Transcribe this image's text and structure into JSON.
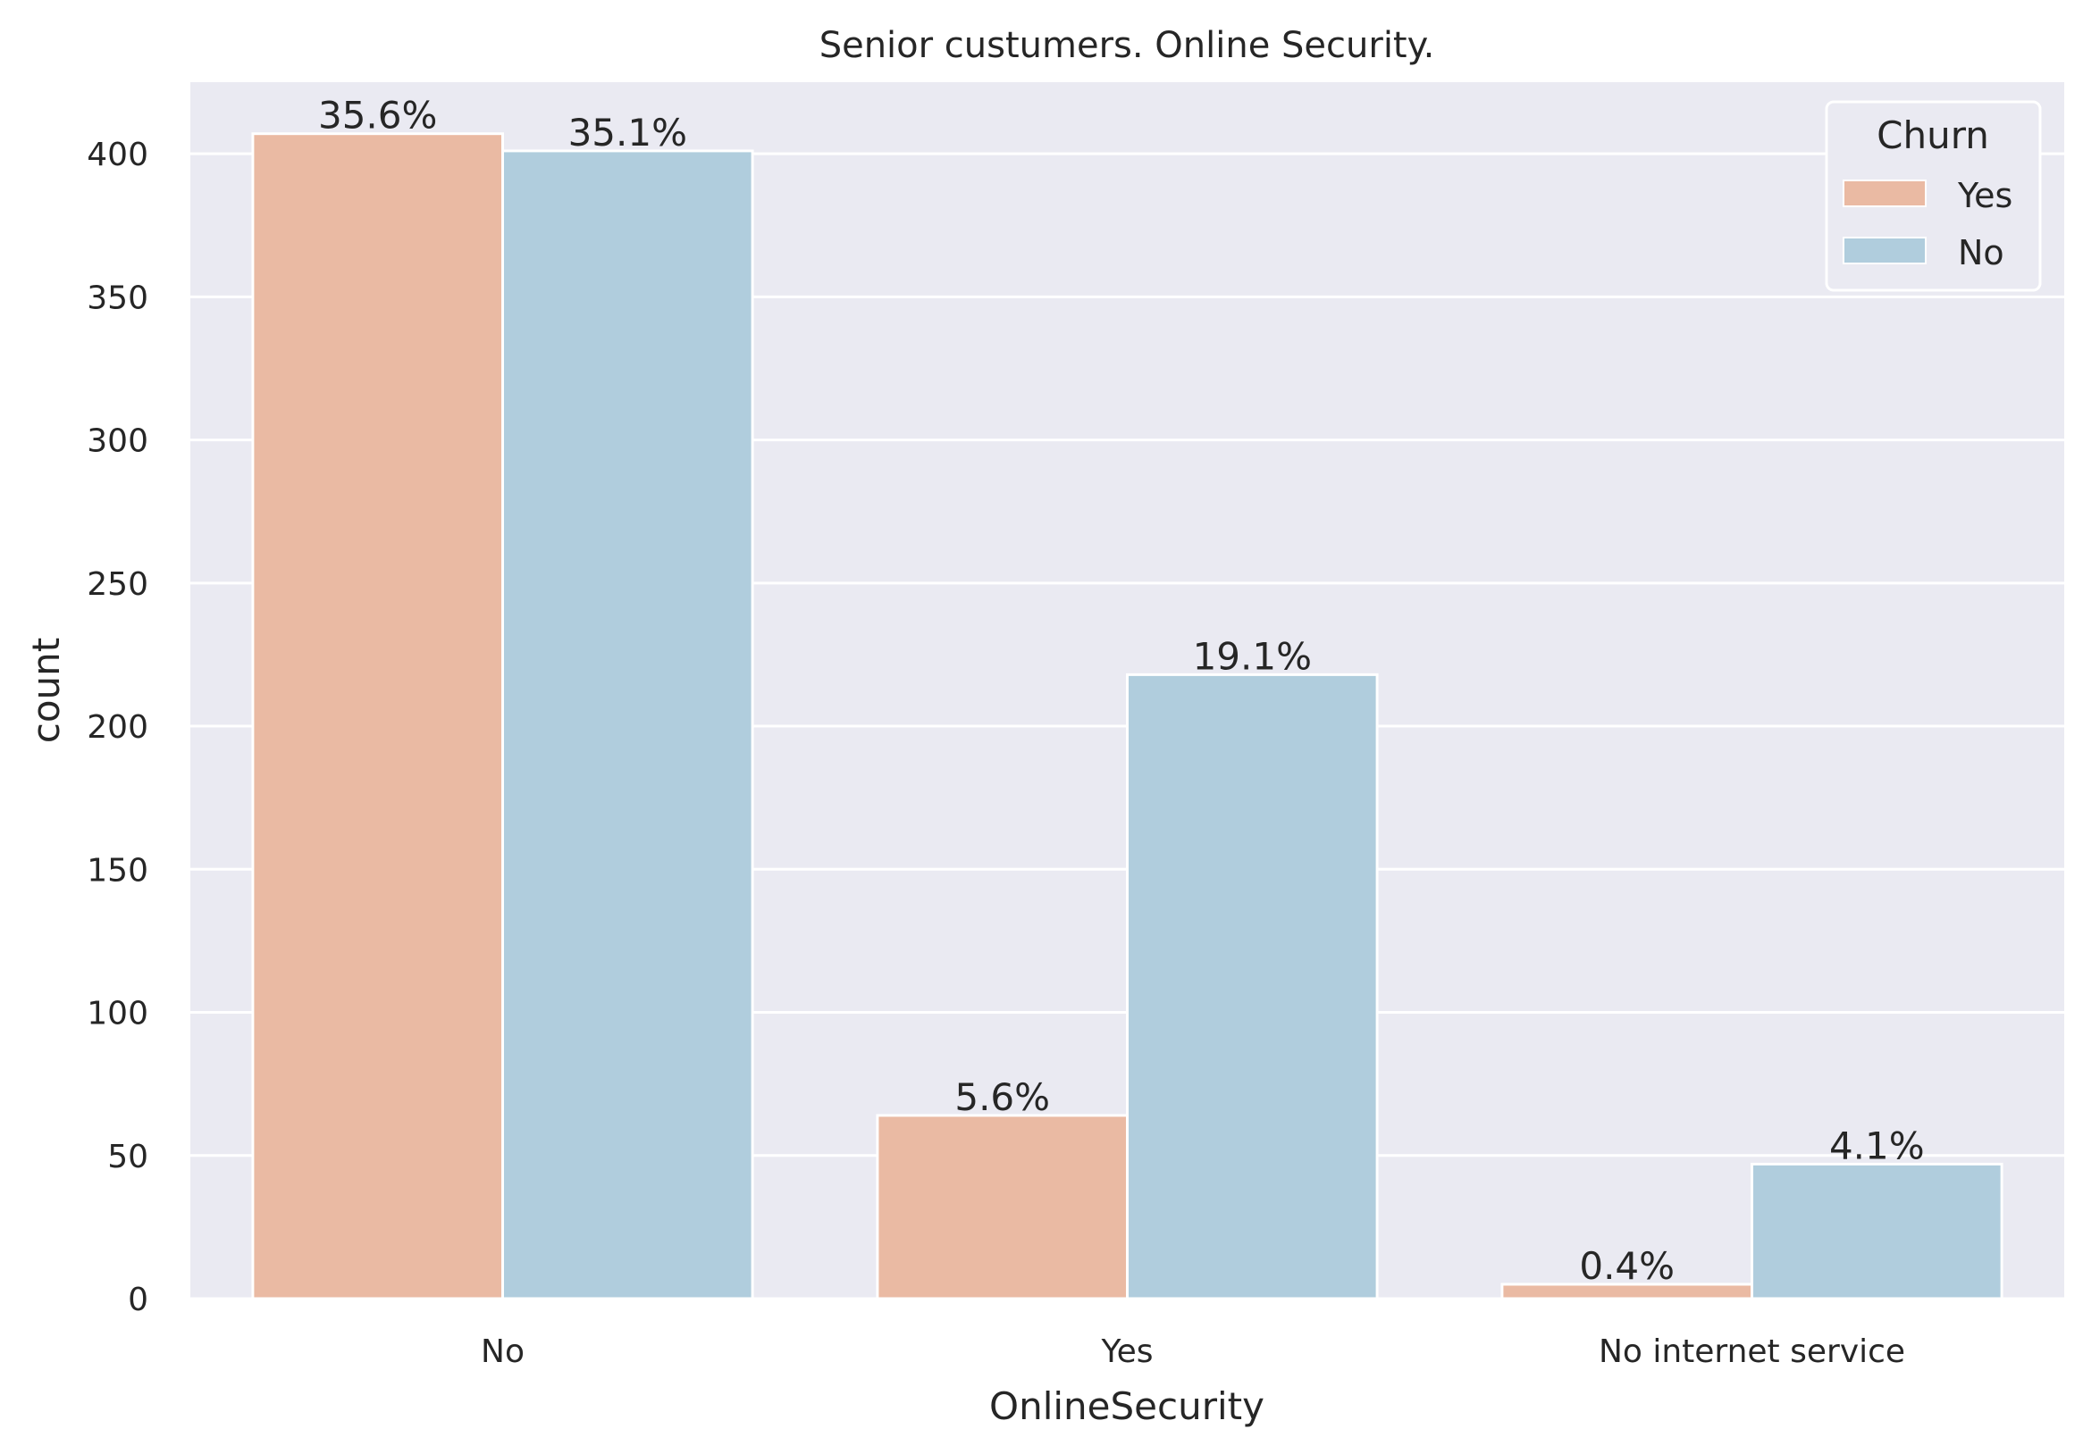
{
  "chart_data": {
    "type": "bar",
    "title": "Senior custumers. Online Security.",
    "xlabel": "OnlineSecurity",
    "ylabel": "count",
    "categories": [
      "No",
      "Yes",
      "No internet service"
    ],
    "series": [
      {
        "name": "Yes",
        "color": "#eabaa3",
        "values": [
          407,
          64,
          5
        ],
        "labels": [
          "35.6%",
          "5.6%",
          "0.4%"
        ]
      },
      {
        "name": "No",
        "color": "#b0cddd",
        "values": [
          401,
          218,
          47
        ],
        "labels": [
          "35.1%",
          "19.1%",
          "4.1%"
        ]
      }
    ],
    "ylim": [
      0,
      425
    ],
    "yticks": [
      0,
      50,
      100,
      150,
      200,
      250,
      300,
      350,
      400
    ],
    "grid": true,
    "legend": {
      "title": "Churn",
      "placement": "top-right"
    },
    "colors": {
      "background": "#eaeaf2",
      "grid": "#ffffff",
      "text": "#262626"
    }
  }
}
